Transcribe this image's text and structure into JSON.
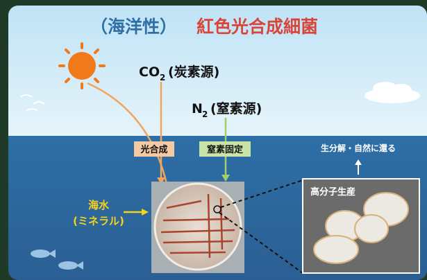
{
  "title": {
    "prefix": "（海洋性）",
    "main": "紅色光合成細菌"
  },
  "carbon": {
    "formula": "CO",
    "subscript": "2",
    "label": "(炭素源)"
  },
  "nitrogen": {
    "formula": "N",
    "subscript": "2",
    "label": "(窒素源)"
  },
  "process": {
    "photosynthesis": "光合成",
    "nitrogen_fixation": "窒素固定"
  },
  "biodegradation": "生分解・自然に還る",
  "polymer": "高分子生産",
  "seawater": {
    "line1": "海水",
    "line2": "(ミネラル)"
  }
}
